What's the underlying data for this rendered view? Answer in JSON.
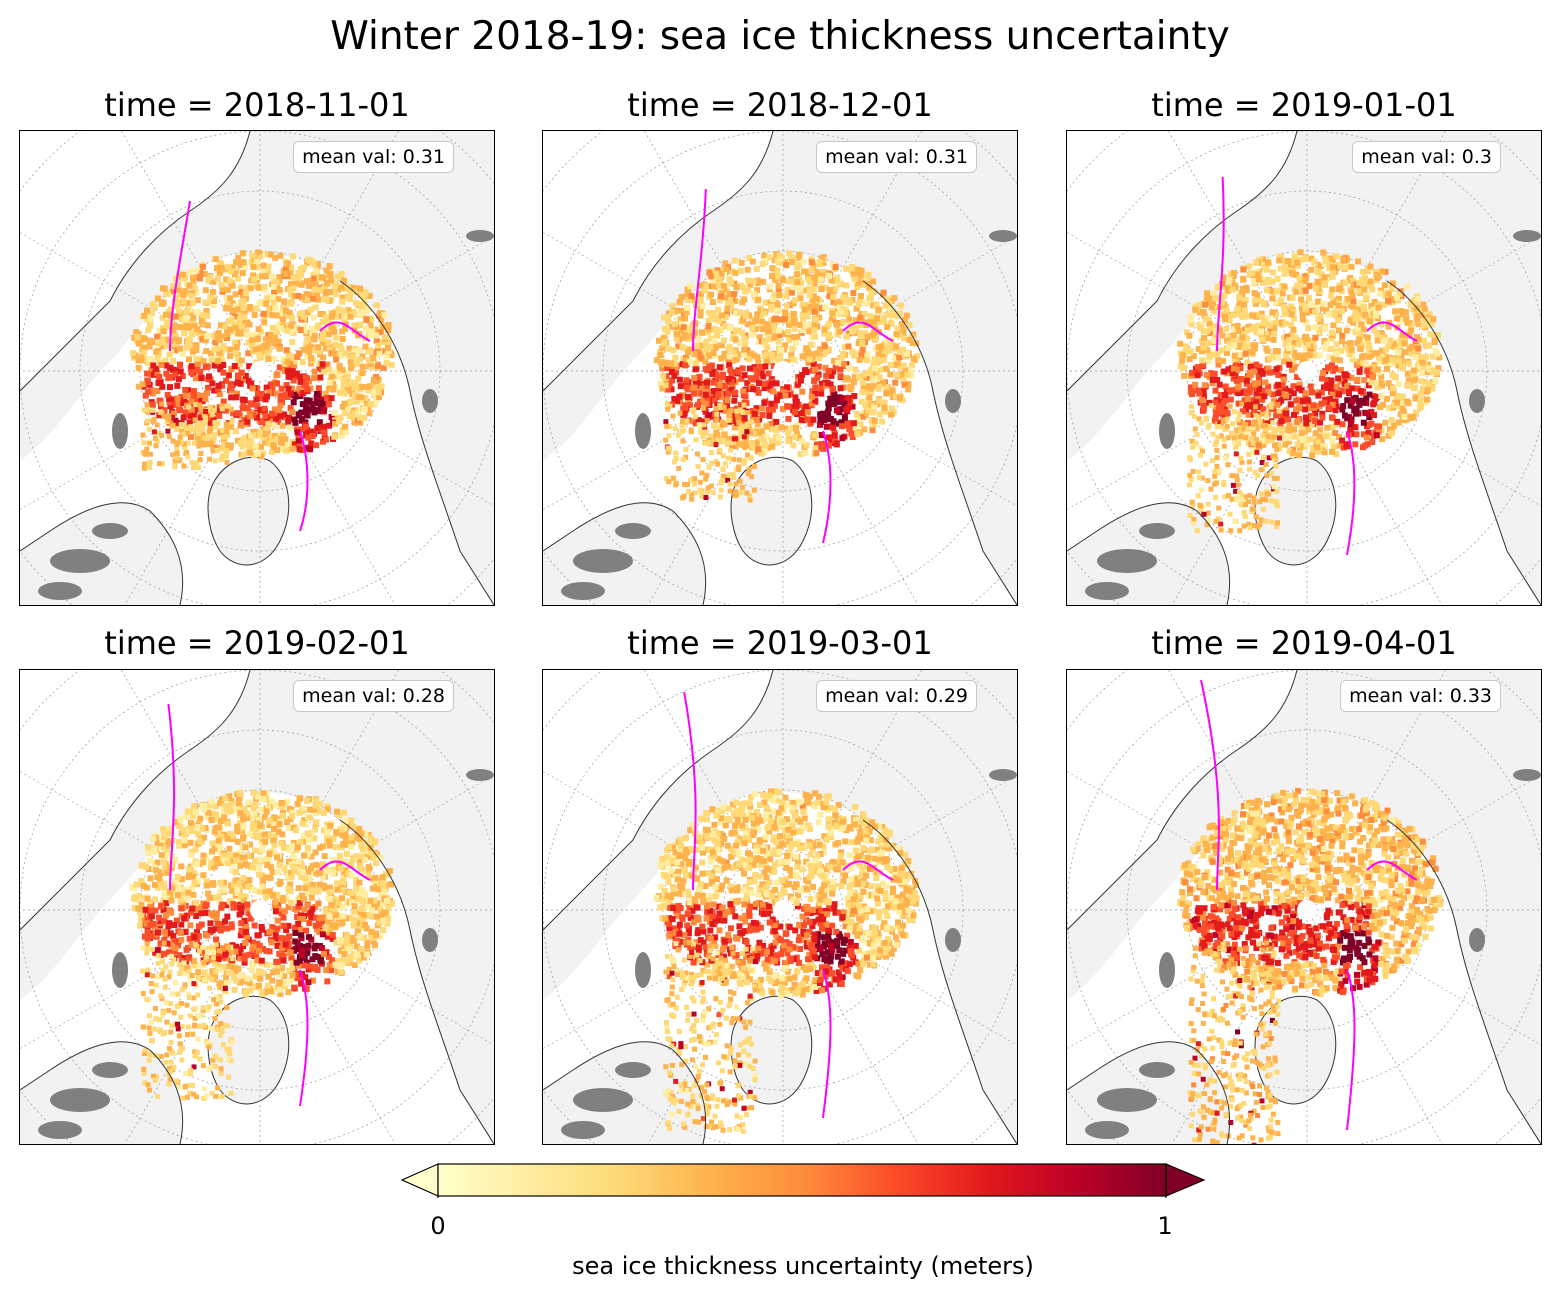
{
  "figure": {
    "title": "Winter 2018-19: sea ice thickness uncertainty"
  },
  "colors": {
    "ice_edge": "#ff00ff",
    "land": "#f2f2f2",
    "ocean": "#ffffff",
    "coast": "#333333",
    "grid": "#999999",
    "other_ice": "#808080"
  },
  "chart_data": {
    "type": "heatmap",
    "projection": "north polar stereographic",
    "variable": "sea ice thickness uncertainty",
    "units": "meters",
    "panels": [
      {
        "title": "time = 2018-11-01",
        "mean_label": "mean val:",
        "mean": 0.31
      },
      {
        "title": "time = 2018-12-01",
        "mean_label": "mean val:",
        "mean": 0.31
      },
      {
        "title": "time = 2019-01-01",
        "mean_label": "mean val:",
        "mean": 0.3
      },
      {
        "title": "time = 2019-02-01",
        "mean_label": "mean val:",
        "mean": 0.28
      },
      {
        "title": "time = 2019-03-01",
        "mean_label": "mean val:",
        "mean": 0.29
      },
      {
        "title": "time = 2019-04-01",
        "mean_label": "mean val:",
        "mean": 0.33
      }
    ],
    "colorbar": {
      "label": "sea ice thickness uncertainty (meters)",
      "ticks": [
        "0",
        "1"
      ],
      "vmin": 0,
      "vmax": 1,
      "extend": "both",
      "colormap": [
        "#ffffcc",
        "#ffeda0",
        "#fed976",
        "#feb24c",
        "#fd8d3c",
        "#fc4e2a",
        "#e31a1c",
        "#bd0026",
        "#800026"
      ]
    }
  }
}
